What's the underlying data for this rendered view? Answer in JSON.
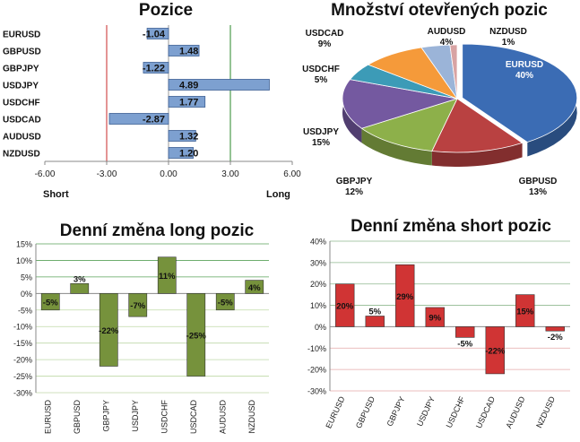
{
  "titles": {
    "positions": "Pozice",
    "pie": "Množství otevřených pozic",
    "long_change": "Denní změna long pozic",
    "short_change": "Denní změna short pozic"
  },
  "colors": {
    "short_line": "#d55a5a",
    "long_line": "#5aa35a",
    "positions_bar": "#7da0d0",
    "long_bar": "#76923c",
    "short_bar": "#d03434",
    "pie_slices": [
      "#3b6cb4",
      "#b94141",
      "#8db04a",
      "#7459a0",
      "#3c9bb7",
      "#f59a3a",
      "#9bb4d8",
      "#d8a3a3"
    ]
  },
  "chart_data": [
    {
      "id": "positions",
      "type": "bar",
      "orientation": "horizontal",
      "title": "Pozice",
      "categories": [
        "EURUSD",
        "GBPUSD",
        "GBPJPY",
        "USDJPY",
        "USDCHF",
        "USDCAD",
        "AUDUSD",
        "NZDUSD"
      ],
      "values": [
        -1.04,
        1.48,
        -1.22,
        4.89,
        1.77,
        -2.87,
        1.32,
        1.2
      ],
      "value_labels": [
        "-1.04",
        "1.48",
        "-1.22",
        "4.89",
        "1.77",
        "-2.87",
        "1.32",
        "1.20"
      ],
      "xlim": [
        -6,
        6
      ],
      "xticks": [
        "-6.00",
        "-3.00",
        "0.00",
        "3.00",
        "6.00"
      ],
      "reference_lines": [
        -3,
        3
      ],
      "annotations": {
        "left": "Short",
        "right": "Long"
      }
    },
    {
      "id": "pie",
      "type": "pie",
      "title": "Množství otevřených pozic",
      "slices": [
        {
          "name": "EURUSD",
          "label": "40%",
          "value": 40
        },
        {
          "name": "GBPUSD",
          "label": "13%",
          "value": 13
        },
        {
          "name": "GBPJPY",
          "label": "12%",
          "value": 12
        },
        {
          "name": "USDJPY",
          "label": "15%",
          "value": 15
        },
        {
          "name": "USDCHF",
          "label": "5%",
          "value": 5
        },
        {
          "name": "USDCAD",
          "label": "9%",
          "value": 9
        },
        {
          "name": "AUDUSD",
          "label": "4%",
          "value": 4
        },
        {
          "name": "NZDUSD",
          "label": "1%",
          "value": 1
        }
      ]
    },
    {
      "id": "long_change",
      "type": "bar",
      "title": "Denní změna long pozic",
      "categories": [
        "EURUSD",
        "GBPUSD",
        "GBPJPY",
        "USDJPY",
        "USDCHF",
        "USDCAD",
        "AUDUSD",
        "NZDUSD"
      ],
      "values": [
        -5,
        3,
        -22,
        -7,
        11,
        -25,
        -5,
        4
      ],
      "value_labels": [
        "-5%",
        "3%",
        "-22%",
        "-7%",
        "11%",
        "-25%",
        "-5%",
        "4%"
      ],
      "ylim": [
        -30,
        15
      ],
      "yticks": [
        "-30%",
        "-25%",
        "-20%",
        "-15%",
        "-10%",
        "-5%",
        "0%",
        "5%",
        "10%",
        "15%"
      ],
      "grid": true
    },
    {
      "id": "short_change",
      "type": "bar",
      "title": "Denní změna short pozic",
      "categories": [
        "EURUSD",
        "GBPUSD",
        "GBPJPY",
        "USDJPY",
        "USDCHF",
        "USDCAD",
        "AUDUSD",
        "NZDUSD"
      ],
      "values": [
        20,
        5,
        29,
        9,
        -5,
        -22,
        15,
        -2
      ],
      "value_labels": [
        "20%",
        "5%",
        "29%",
        "9%",
        "-5%",
        "-22%",
        "15%",
        "-2%"
      ],
      "ylim": [
        -30,
        40
      ],
      "yticks": [
        "-30%",
        "-20%",
        "-10%",
        "0%",
        "10%",
        "20%",
        "30%",
        "40%"
      ],
      "grid": true
    }
  ]
}
